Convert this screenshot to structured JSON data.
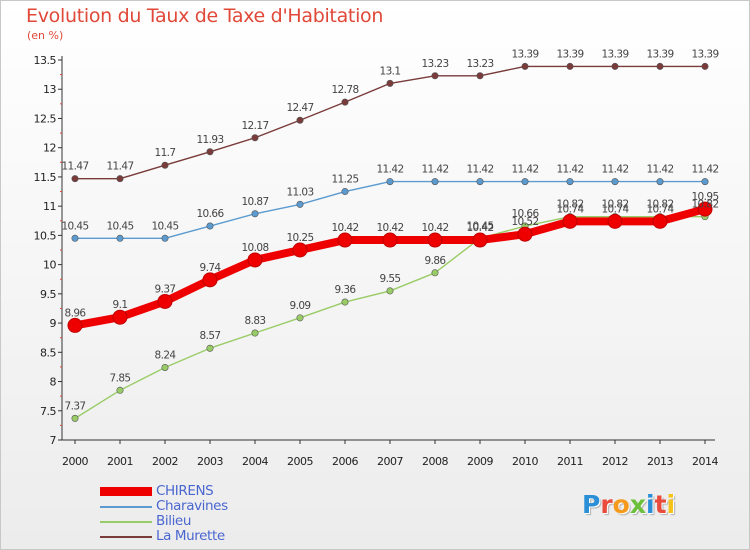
{
  "title": "Evolution du Taux de Taxe d'Habitation",
  "unit_label": "(en %)",
  "logo_text": "Proxiti",
  "chart_data": {
    "type": "line",
    "title": "Evolution du Taux de Taxe d'Habitation",
    "ylabel": "(en %)",
    "xlabel": "",
    "x": [
      "2000",
      "2001",
      "2002",
      "2003",
      "2004",
      "2005",
      "2006",
      "2007",
      "2008",
      "2009",
      "2010",
      "2011",
      "2012",
      "2013",
      "2014"
    ],
    "ylim": [
      7,
      13.5
    ],
    "yticks": [
      "7",
      "7.5",
      "8",
      "8.5",
      "9",
      "9.5",
      "10",
      "10.5",
      "11",
      "11.5",
      "12",
      "12.5",
      "13",
      "13.5"
    ],
    "grid": false,
    "legend_position": "bottom-left",
    "series": [
      {
        "name": "CHIRENS",
        "color": "#ee0000",
        "values": [
          8.96,
          9.1,
          9.37,
          9.74,
          10.08,
          10.25,
          10.42,
          10.42,
          10.42,
          10.42,
          10.52,
          10.74,
          10.74,
          10.74,
          10.95
        ],
        "labels": [
          "8.96",
          "9.1",
          "9.37",
          "9.74",
          "10.08",
          "10.25",
          "10.42",
          "10.42",
          "10.42",
          "10.42",
          "10.52",
          "10.74",
          "10.74",
          "10.74",
          "10.95"
        ]
      },
      {
        "name": "Charavines",
        "color": "#5b9bd0",
        "values": [
          10.45,
          10.45,
          10.45,
          10.66,
          10.87,
          11.03,
          11.25,
          11.42,
          11.42,
          11.42,
          11.42,
          11.42,
          11.42,
          11.42,
          11.42
        ],
        "labels": [
          "10.45",
          "10.45",
          "10.45",
          "10.66",
          "10.87",
          "11.03",
          "11.25",
          "11.42",
          "11.42",
          "11.42",
          "11.42",
          "11.42",
          "11.42",
          "11.42",
          "11.42"
        ]
      },
      {
        "name": "Bilieu",
        "color": "#99cc66",
        "values": [
          7.37,
          7.85,
          8.24,
          8.57,
          8.83,
          9.09,
          9.36,
          9.55,
          9.86,
          10.45,
          10.66,
          10.82,
          10.82,
          10.82,
          10.82
        ],
        "labels": [
          "7.37",
          "7.85",
          "8.24",
          "8.57",
          "8.83",
          "9.09",
          "9.36",
          "9.55",
          "9.86",
          "10.45",
          "10.66",
          "10.82",
          "10.82",
          "10.82",
          "10.82"
        ]
      },
      {
        "name": "La Murette",
        "color": "#7a3b3b",
        "values": [
          11.47,
          11.47,
          11.7,
          11.93,
          12.17,
          12.47,
          12.78,
          13.1,
          13.23,
          13.23,
          13.39,
          13.39,
          13.39,
          13.39,
          13.39
        ],
        "labels": [
          "11.47",
          "11.47",
          "11.7",
          "11.93",
          "12.17",
          "12.47",
          "12.78",
          "13.1",
          "13.23",
          "13.23",
          "13.39",
          "13.39",
          "13.39",
          "13.39",
          "13.39"
        ]
      }
    ]
  }
}
